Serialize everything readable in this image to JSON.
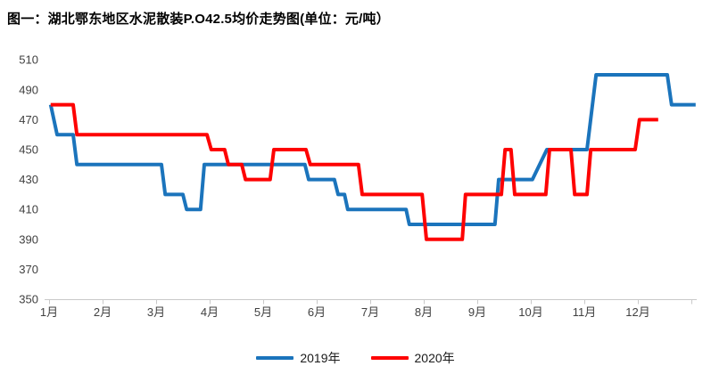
{
  "chart_data": {
    "type": "line",
    "title": "图一：湖北鄂东地区水泥散装P.O42.5均价走势图(单位：元/吨）",
    "unit": "元/吨",
    "legend_position": "bottom",
    "grid": false,
    "y_axis": {
      "min": 350,
      "max": 510,
      "step": 20,
      "ticks": [
        510,
        490,
        470,
        450,
        430,
        410,
        390,
        370,
        350
      ]
    },
    "x_axis": {
      "labels": [
        "1月",
        "2月",
        "3月",
        "4月",
        "5月",
        "6月",
        "7月",
        "8月",
        "9月",
        "10月",
        "11月",
        "12月"
      ],
      "range_months": [
        1,
        13.1
      ]
    },
    "colors": {
      "axis": "#c9c9c9",
      "tick_labels": "#404040"
    },
    "series": [
      {
        "name": "2019年",
        "color": "#1b74bc",
        "points": [
          [
            1.03,
            480
          ],
          [
            1.15,
            460
          ],
          [
            1.45,
            460
          ],
          [
            1.52,
            440
          ],
          [
            3.1,
            440
          ],
          [
            3.17,
            420
          ],
          [
            3.5,
            420
          ],
          [
            3.57,
            410
          ],
          [
            3.83,
            410
          ],
          [
            3.9,
            440
          ],
          [
            5.78,
            440
          ],
          [
            5.85,
            430
          ],
          [
            6.33,
            430
          ],
          [
            6.4,
            420
          ],
          [
            6.52,
            420
          ],
          [
            6.58,
            410
          ],
          [
            7.67,
            410
          ],
          [
            7.73,
            400
          ],
          [
            9.33,
            400
          ],
          [
            9.4,
            430
          ],
          [
            10.03,
            430
          ],
          [
            10.3,
            450
          ],
          [
            11.05,
            450
          ],
          [
            11.22,
            500
          ],
          [
            12.55,
            500
          ],
          [
            12.63,
            480
          ],
          [
            13.08,
            480
          ]
        ]
      },
      {
        "name": "2020年",
        "color": "#fe0202",
        "points": [
          [
            1.03,
            480
          ],
          [
            1.45,
            480
          ],
          [
            1.52,
            460
          ],
          [
            3.95,
            460
          ],
          [
            4.03,
            450
          ],
          [
            4.28,
            450
          ],
          [
            4.35,
            440
          ],
          [
            4.6,
            440
          ],
          [
            4.67,
            430
          ],
          [
            5.13,
            430
          ],
          [
            5.2,
            450
          ],
          [
            5.8,
            450
          ],
          [
            5.88,
            440
          ],
          [
            6.78,
            440
          ],
          [
            6.85,
            420
          ],
          [
            7.97,
            420
          ],
          [
            8.05,
            390
          ],
          [
            8.72,
            390
          ],
          [
            8.78,
            420
          ],
          [
            9.45,
            420
          ],
          [
            9.52,
            450
          ],
          [
            9.63,
            450
          ],
          [
            9.7,
            420
          ],
          [
            10.28,
            420
          ],
          [
            10.35,
            450
          ],
          [
            10.75,
            450
          ],
          [
            10.82,
            420
          ],
          [
            11.05,
            420
          ],
          [
            11.12,
            450
          ],
          [
            11.95,
            450
          ],
          [
            12.03,
            470
          ],
          [
            12.38,
            470
          ]
        ]
      }
    ]
  }
}
